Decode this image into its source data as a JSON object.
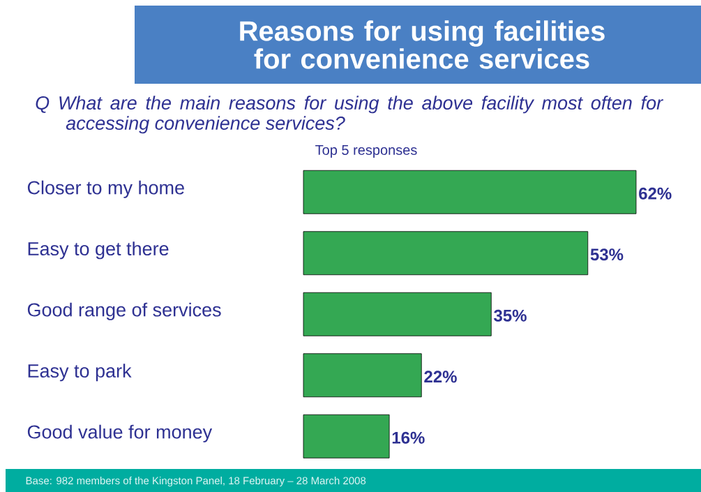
{
  "chart_data": {
    "type": "bar",
    "orientation": "horizontal",
    "title": "Reasons for using facilities for convenience services",
    "subtitle": "Q What are the main reasons for using the above facility most often for accessing convenience services?",
    "categories": [
      "Closer to my home",
      "Easy to get there",
      "Good range of services",
      "Easy to park",
      "Good value for money"
    ],
    "values": [
      62,
      53,
      35,
      22,
      16
    ],
    "value_labels": [
      "62%",
      "53%",
      "35%",
      "22%",
      "16%"
    ],
    "color": "#34a853",
    "annotations": [
      "Top 5 responses",
      "Base: 982 members of the Kingston Panel, 18 February – 28 March 2008"
    ]
  }
}
